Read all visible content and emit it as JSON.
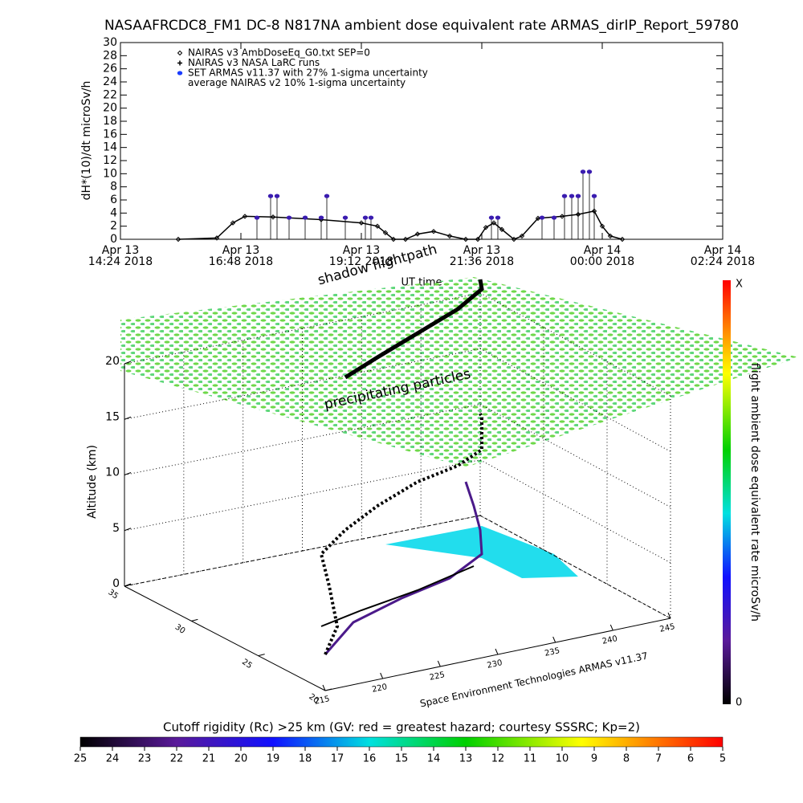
{
  "title": "NASAAFRCDC8_FM1 DC-8   N817NA ambient dose equivalent rate ARMAS_dirIP_Report_59780",
  "chart_data": [
    {
      "type": "line",
      "ylabel": "dH*(10)/dt microSv/h",
      "xlabel": "UT time",
      "xlim": [
        14.4,
        26.4
      ],
      "xticks": [
        {
          "value": 14.4,
          "label": "Apr 13\n14:24 2018"
        },
        {
          "value": 16.8,
          "label": "Apr 13\n16:48 2018"
        },
        {
          "value": 19.2,
          "label": "Apr 13\n19:12 2018"
        },
        {
          "value": 21.6,
          "label": "Apr 13\n21:36 2018"
        },
        {
          "value": 24,
          "label": "Apr 14\n00:00 2018"
        },
        {
          "value": 26.4,
          "label": "Apr 14\n02:24 2018"
        }
      ],
      "ylim": [
        0,
        30
      ],
      "yticks": [
        0,
        2,
        4,
        6,
        8,
        10,
        12,
        14,
        16,
        18,
        20,
        22,
        24,
        26,
        28,
        30
      ],
      "series": [
        {
          "name": "NAIRAS v3 AmbDoseEq_G0.txt SEP=0",
          "color": "#000000",
          "marker": "diamond",
          "x": [
            15.552,
            16.32,
            16.64,
            16.88,
            17.44,
            18.4,
            19.2,
            19.52,
            19.68,
            19.84,
            20.08,
            20.32,
            20.64,
            20.96,
            21.28,
            21.52,
            21.68,
            21.84,
            22.0,
            22.24,
            22.4,
            22.72,
            23.2,
            23.52,
            23.84,
            24.0,
            24.16,
            24.4
          ],
          "values": [
            0,
            0.2,
            2.5,
            3.5,
            3.4,
            3.0,
            2.5,
            2.0,
            1.0,
            0,
            0,
            0.8,
            1.2,
            0.5,
            0,
            0,
            1.8,
            2.5,
            1.5,
            0,
            0.5,
            3.2,
            3.5,
            3.8,
            4.3,
            2.0,
            0.5,
            0
          ]
        },
        {
          "name": "NAIRAS v3 NASA LaRC runs",
          "color": "#000000",
          "marker": "plus",
          "x": [],
          "values": []
        },
        {
          "name": "SET ARMAS v11.37 with 27% 1-sigma uncertainty",
          "color": "#3a1cb0",
          "marker": "circle",
          "x": [
            17.12,
            17.392,
            17.52,
            17.76,
            18.08,
            18.4,
            18.512,
            18.88,
            19.28,
            19.392,
            21.792,
            21.92,
            22.8,
            23.04,
            23.248,
            23.392,
            23.52,
            23.616,
            23.744,
            23.84
          ],
          "values": [
            3.3,
            6.6,
            6.6,
            3.3,
            3.3,
            3.3,
            6.6,
            3.3,
            3.3,
            3.3,
            3.3,
            3.3,
            3.3,
            3.3,
            6.6,
            6.6,
            6.6,
            10.3,
            10.3,
            6.6
          ]
        },
        {
          "name": "average NAIRAS v2 10% 1-sigma uncertainty",
          "color": "#000000",
          "x": [],
          "values": []
        }
      ]
    },
    {
      "type": "3d",
      "zlabel": "Altitude (km)",
      "zlim": [
        0,
        20
      ],
      "zticks": [
        0,
        5,
        10,
        15,
        20
      ],
      "ylim": [
        20,
        35
      ],
      "yticks": [
        20,
        25,
        30,
        35
      ],
      "xlim": [
        215,
        245
      ],
      "xticks": [
        215,
        220,
        225,
        230,
        235,
        240,
        245
      ],
      "annotations": [
        "shadow flightpath",
        "precipitating particles",
        "Space Environment Technologies ARMAS v11.37"
      ],
      "colorbar_label": "flight ambient dose equivalent rate microSv/h",
      "colorbar_top": "X",
      "colorbar_ticks": [
        0
      ]
    },
    {
      "type": "colorbar",
      "title": "Cutoff rigidity (Rc) >25 km (GV: red = greatest hazard; courtesy SSSRC; Kp=2)",
      "xlim": [
        25,
        5
      ],
      "xticks": [
        25,
        24,
        23,
        22,
        21,
        20,
        19,
        18,
        17,
        16,
        15,
        14,
        13,
        12,
        11,
        10,
        9,
        8,
        7,
        6,
        5
      ]
    }
  ]
}
